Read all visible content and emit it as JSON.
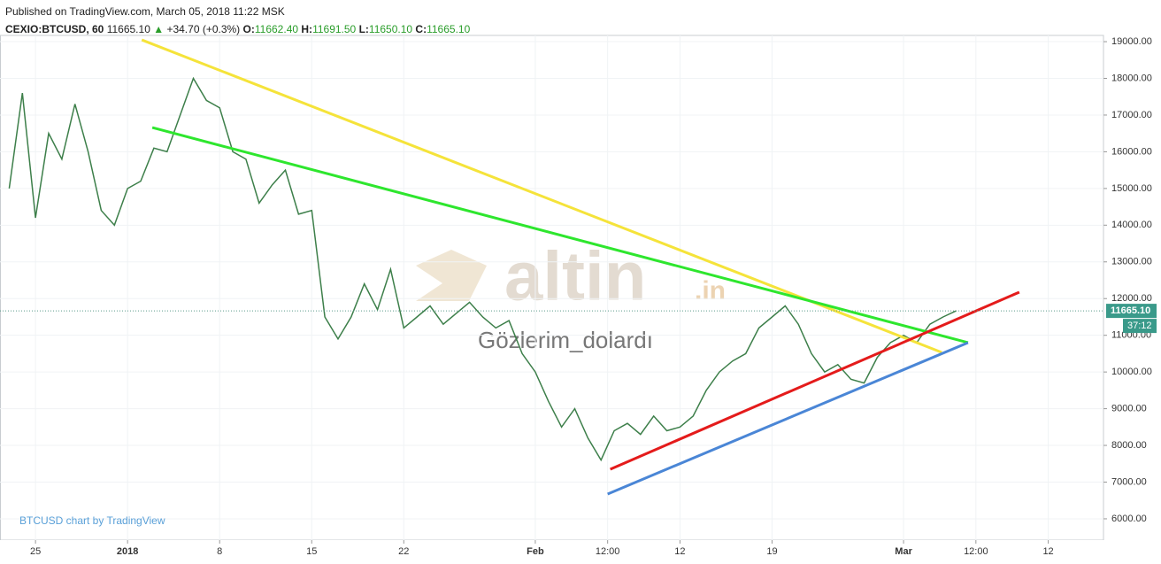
{
  "header": {
    "published": "Published on TradingView.com, March 05, 2018 11:22 MSK",
    "symbol": "CEXIO:BTCUSD, 60",
    "price": "11665.10",
    "arrow": "▲",
    "change": "+34.70 (+0.3%)",
    "o_label": "O:",
    "o": "11662.40",
    "h_label": "H:",
    "h": "11691.50",
    "l_label": "L:",
    "l": "11650.10",
    "c_label": "C:",
    "c": "11665.10"
  },
  "chart_data": {
    "type": "line",
    "color": "#3d7f4a",
    "watermark": "altin",
    "watermark_suffix": ".in",
    "watermark_text": "Gözlerim_dolardı",
    "credit": "BTCUSD chart by TradingView",
    "x": [
      -2,
      -1,
      0,
      1,
      2,
      3,
      4,
      5,
      6,
      7,
      8,
      9,
      10,
      11,
      12,
      13,
      14,
      15,
      16,
      17,
      18,
      19,
      20,
      21,
      22,
      23,
      24,
      25,
      26,
      27,
      28,
      29,
      30,
      31,
      32,
      33,
      34,
      35,
      36,
      37,
      38,
      39,
      40,
      41,
      42,
      43,
      44,
      45,
      46,
      47,
      48,
      49,
      50,
      51,
      52,
      53,
      54,
      55,
      56,
      57,
      58,
      59,
      60,
      61,
      62,
      63,
      64,
      65,
      66,
      67,
      68,
      69,
      70
    ],
    "values": [
      15000,
      17600,
      14200,
      16500,
      15800,
      17300,
      16000,
      14400,
      14000,
      15000,
      15200,
      16100,
      16000,
      17000,
      18000,
      17400,
      17200,
      16000,
      15800,
      14600,
      15100,
      15500,
      14300,
      14400,
      11500,
      10900,
      11500,
      12400,
      11700,
      12800,
      11200,
      11500,
      11800,
      11300,
      11600,
      11900,
      11500,
      11200,
      11400,
      10500,
      10000,
      9200,
      8500,
      9000,
      8200,
      7600,
      8400,
      8600,
      8300,
      8800,
      8400,
      8500,
      8800,
      9500,
      10000,
      10300,
      10500,
      11200,
      11500,
      11800,
      11300,
      10500,
      10000,
      10200,
      9800,
      9700,
      10400,
      10800,
      11000,
      10800,
      11300,
      11500,
      11665
    ],
    "last_price": 11665.1,
    "last_price_label": "11665.10",
    "timer": "37:12",
    "trendlines": [
      {
        "color": "#f5e33a",
        "x": [
          8.08,
          68.9
        ],
        "y": [
          19048,
          10534
        ]
      },
      {
        "color": "#2ee62e",
        "x": [
          8.88,
          70.9
        ],
        "y": [
          16660,
          10800
        ]
      },
      {
        "color": "#e41b1b",
        "x": [
          43.7,
          74.8
        ],
        "y": [
          7350,
          12175
        ]
      },
      {
        "color": "#4a86d6",
        "x": [
          43.5,
          70.9
        ],
        "y": [
          6675,
          10800
        ]
      }
    ],
    "xlim": [
      -2.7,
      81.2
    ],
    "ylim": [
      5420,
      19170
    ],
    "xticks": [
      {
        "value": 0,
        "label": "25"
      },
      {
        "value": 7,
        "label": "2018"
      },
      {
        "value": 14,
        "label": "8"
      },
      {
        "value": 21,
        "label": "15"
      },
      {
        "value": 28,
        "label": "22"
      },
      {
        "value": 38,
        "label": "Feb"
      },
      {
        "value": 43.5,
        "label": "12:00"
      },
      {
        "value": 49,
        "label": "12"
      },
      {
        "value": 56,
        "label": "19"
      },
      {
        "value": 66,
        "label": "Mar"
      },
      {
        "value": 71.5,
        "label": "12:00"
      },
      {
        "value": 77,
        "label": "12"
      }
    ],
    "yticks": [
      {
        "value": 6000,
        "label": "6000.00"
      },
      {
        "value": 7000,
        "label": "7000.00"
      },
      {
        "value": 8000,
        "label": "8000.00"
      },
      {
        "value": 9000,
        "label": "9000.00"
      },
      {
        "value": 10000,
        "label": "10000.00"
      },
      {
        "value": 11000,
        "label": "11000.00"
      },
      {
        "value": 12000,
        "label": "12000.00"
      },
      {
        "value": 13000,
        "label": "13000.00"
      },
      {
        "value": 14000,
        "label": "14000.00"
      },
      {
        "value": 15000,
        "label": "15000.00"
      },
      {
        "value": 16000,
        "label": "16000.00"
      },
      {
        "value": 17000,
        "label": "17000.00"
      },
      {
        "value": 18000,
        "label": "18000.00"
      },
      {
        "value": 19000,
        "label": "19000.00"
      }
    ],
    "grid": true
  }
}
